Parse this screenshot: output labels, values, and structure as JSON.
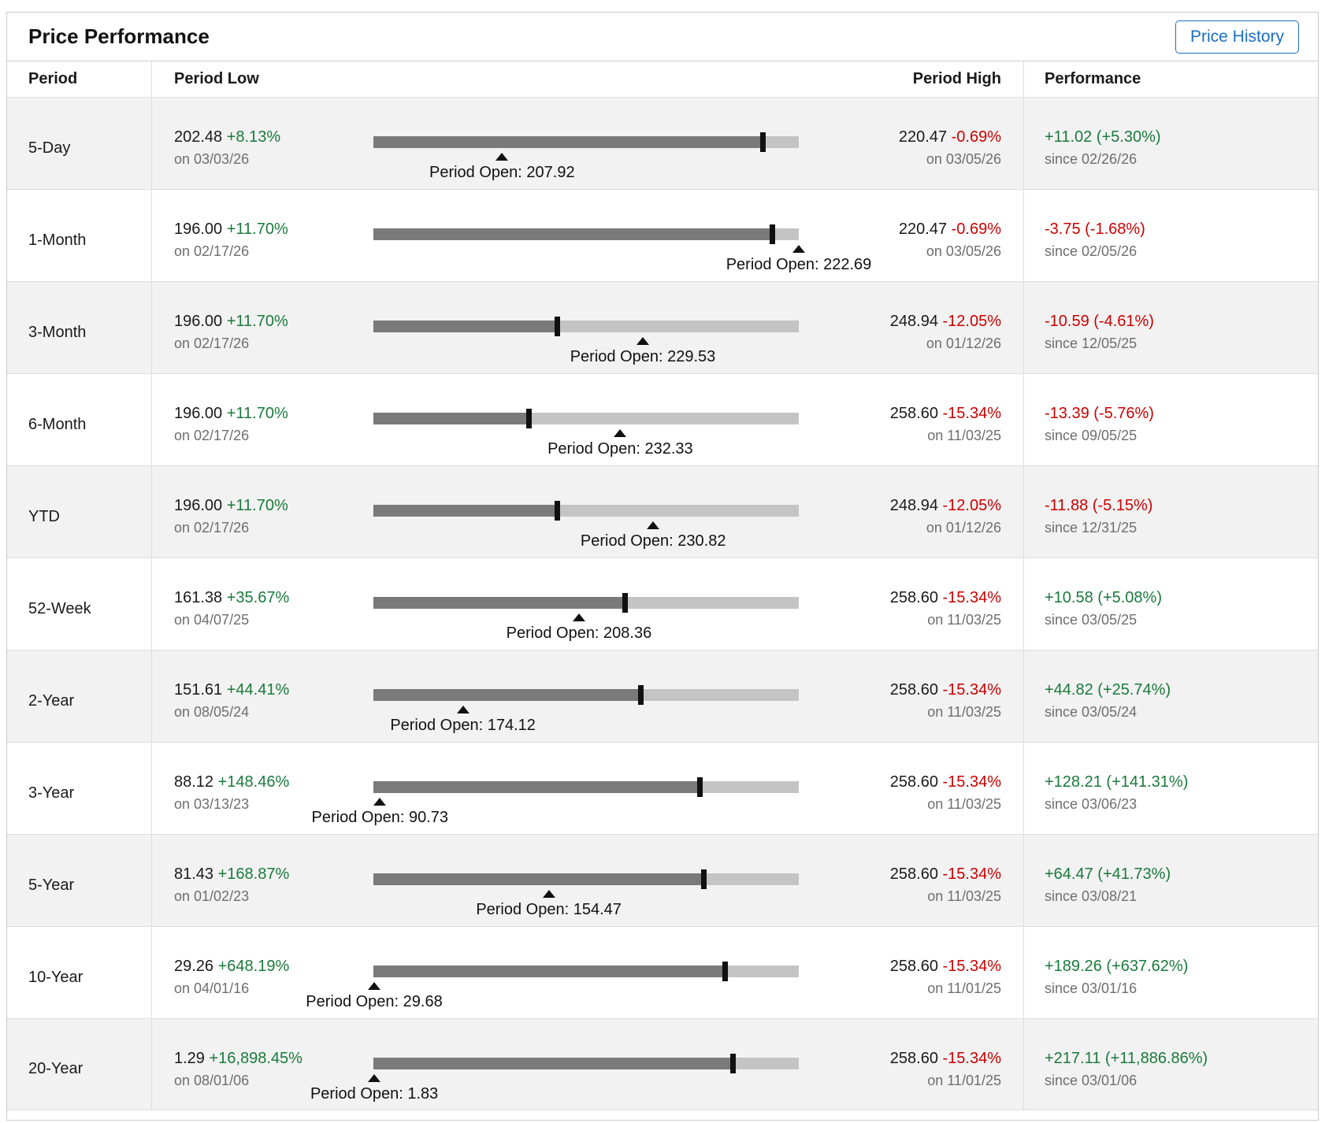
{
  "header": {
    "title": "Price Performance",
    "button_label": "Price History"
  },
  "columns": {
    "period": "Period",
    "low": "Period Low",
    "high": "Period High",
    "performance": "Performance"
  },
  "colors": {
    "positive": "#1a7a3c",
    "negative": "#cc0000",
    "button_blue": "#1b6ec2",
    "gauge_fill": "#7a7a7a",
    "gauge_track": "#c4c4c4",
    "gauge_marker": "#111111",
    "muted_date": "#6e6e6e",
    "alt_row": "#f2f2f2"
  },
  "chart_data": {
    "type": "table",
    "title": "Price Performance",
    "current_price_marker": 218.94,
    "rows": [
      {
        "period": "5-Day",
        "low": {
          "value": "202.48",
          "num": 202.48,
          "change": "+8.13%",
          "date": "on 03/03/26"
        },
        "open": {
          "label": "Period Open: 207.92",
          "num": 207.92
        },
        "high": {
          "value": "220.47",
          "num": 220.47,
          "change": "-0.69%",
          "date": "on 03/05/26"
        },
        "performance": {
          "text": "+11.02 (+5.30%)",
          "date": "since 02/26/26"
        }
      },
      {
        "period": "1-Month",
        "low": {
          "value": "196.00",
          "num": 196.0,
          "change": "+11.70%",
          "date": "on 02/17/26"
        },
        "open": {
          "label": "Period Open: 222.69",
          "num": 222.69
        },
        "high": {
          "value": "220.47",
          "num": 220.47,
          "change": "-0.69%",
          "date": "on 03/05/26"
        },
        "performance": {
          "text": "-3.75 (-1.68%)",
          "date": "since 02/05/26"
        }
      },
      {
        "period": "3-Month",
        "low": {
          "value": "196.00",
          "num": 196.0,
          "change": "+11.70%",
          "date": "on 02/17/26"
        },
        "open": {
          "label": "Period Open: 229.53",
          "num": 229.53
        },
        "high": {
          "value": "248.94",
          "num": 248.94,
          "change": "-12.05%",
          "date": "on 01/12/26"
        },
        "performance": {
          "text": "-10.59 (-4.61%)",
          "date": "since 12/05/25"
        }
      },
      {
        "period": "6-Month",
        "low": {
          "value": "196.00",
          "num": 196.0,
          "change": "+11.70%",
          "date": "on 02/17/26"
        },
        "open": {
          "label": "Period Open: 232.33",
          "num": 232.33
        },
        "high": {
          "value": "258.60",
          "num": 258.6,
          "change": "-15.34%",
          "date": "on 11/03/25"
        },
        "performance": {
          "text": "-13.39 (-5.76%)",
          "date": "since 09/05/25"
        }
      },
      {
        "period": "YTD",
        "low": {
          "value": "196.00",
          "num": 196.0,
          "change": "+11.70%",
          "date": "on 02/17/26"
        },
        "open": {
          "label": "Period Open: 230.82",
          "num": 230.82
        },
        "high": {
          "value": "248.94",
          "num": 248.94,
          "change": "-12.05%",
          "date": "on 01/12/26"
        },
        "performance": {
          "text": "-11.88 (-5.15%)",
          "date": "since 12/31/25"
        }
      },
      {
        "period": "52-Week",
        "low": {
          "value": "161.38",
          "num": 161.38,
          "change": "+35.67%",
          "date": "on 04/07/25"
        },
        "open": {
          "label": "Period Open: 208.36",
          "num": 208.36
        },
        "high": {
          "value": "258.60",
          "num": 258.6,
          "change": "-15.34%",
          "date": "on 11/03/25"
        },
        "performance": {
          "text": "+10.58 (+5.08%)",
          "date": "since 03/05/25"
        }
      },
      {
        "period": "2-Year",
        "low": {
          "value": "151.61",
          "num": 151.61,
          "change": "+44.41%",
          "date": "on 08/05/24"
        },
        "open": {
          "label": "Period Open: 174.12",
          "num": 174.12
        },
        "high": {
          "value": "258.60",
          "num": 258.6,
          "change": "-15.34%",
          "date": "on 11/03/25"
        },
        "performance": {
          "text": "+44.82 (+25.74%)",
          "date": "since 03/05/24"
        }
      },
      {
        "period": "3-Year",
        "low": {
          "value": "88.12",
          "num": 88.12,
          "change": "+148.46%",
          "date": "on 03/13/23"
        },
        "open": {
          "label": "Period Open: 90.73",
          "num": 90.73
        },
        "high": {
          "value": "258.60",
          "num": 258.6,
          "change": "-15.34%",
          "date": "on 11/03/25"
        },
        "performance": {
          "text": "+128.21 (+141.31%)",
          "date": "since 03/06/23"
        }
      },
      {
        "period": "5-Year",
        "low": {
          "value": "81.43",
          "num": 81.43,
          "change": "+168.87%",
          "date": "on 01/02/23"
        },
        "open": {
          "label": "Period Open: 154.47",
          "num": 154.47
        },
        "high": {
          "value": "258.60",
          "num": 258.6,
          "change": "-15.34%",
          "date": "on 11/03/25"
        },
        "performance": {
          "text": "+64.47 (+41.73%)",
          "date": "since 03/08/21"
        }
      },
      {
        "period": "10-Year",
        "low": {
          "value": "29.26",
          "num": 29.26,
          "change": "+648.19%",
          "date": "on 04/01/16"
        },
        "open": {
          "label": "Period Open: 29.68",
          "num": 29.68
        },
        "high": {
          "value": "258.60",
          "num": 258.6,
          "change": "-15.34%",
          "date": "on 11/01/25"
        },
        "performance": {
          "text": "+189.26 (+637.62%)",
          "date": "since 03/01/16"
        }
      },
      {
        "period": "20-Year",
        "low": {
          "value": "1.29",
          "num": 1.29,
          "change": "+16,898.45%",
          "date": "on 08/01/06"
        },
        "open": {
          "label": "Period Open: 1.83",
          "num": 1.83
        },
        "high": {
          "value": "258.60",
          "num": 258.6,
          "change": "-15.34%",
          "date": "on 11/01/25"
        },
        "performance": {
          "text": "+217.11 (+11,886.86%)",
          "date": "since 03/01/06"
        }
      }
    ]
  }
}
